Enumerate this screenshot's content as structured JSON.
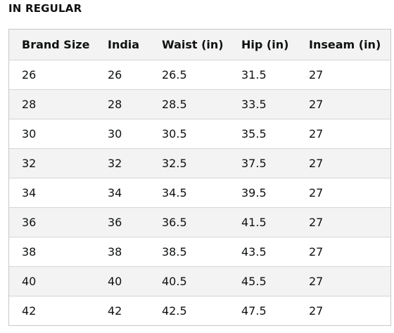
{
  "section": {
    "title": "IN REGULAR"
  },
  "table": {
    "headers": [
      "Brand Size",
      "India",
      "Waist (in)",
      "Hip (in)",
      "Inseam (in)"
    ],
    "rows": [
      [
        "26",
        "26",
        "26.5",
        "31.5",
        "27"
      ],
      [
        "28",
        "28",
        "28.5",
        "33.5",
        "27"
      ],
      [
        "30",
        "30",
        "30.5",
        "35.5",
        "27"
      ],
      [
        "32",
        "32",
        "32.5",
        "37.5",
        "27"
      ],
      [
        "34",
        "34",
        "34.5",
        "39.5",
        "27"
      ],
      [
        "36",
        "36",
        "36.5",
        "41.5",
        "27"
      ],
      [
        "38",
        "38",
        "38.5",
        "43.5",
        "27"
      ],
      [
        "40",
        "40",
        "40.5",
        "45.5",
        "27"
      ],
      [
        "42",
        "42",
        "42.5",
        "47.5",
        "27"
      ]
    ]
  },
  "colors": {
    "text": "#0f1111",
    "header_bg": "#f3f3f3",
    "stripe_bg": "#f3f3f3",
    "border": "#c8c8c8"
  }
}
